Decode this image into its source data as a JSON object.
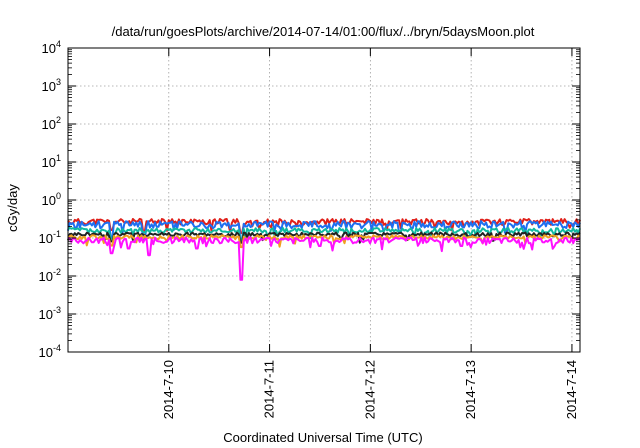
{
  "chart_data": {
    "type": "line",
    "title": "/data/run/goesPlots/archive/2014-07-14/01:00/flux/../bryn/5daysMoon.plot",
    "xlabel": "Coordinated Universal Time (UTC)",
    "ylabel": "cGy/day",
    "yscale": "log",
    "ylim": [
      0.0001,
      10000
    ],
    "xlim": [
      9.0,
      14.08
    ],
    "x_unit_note": "days of July 2014",
    "grid": true,
    "legend": "none",
    "y_ticks": [
      {
        "base": "10",
        "exp": "-4"
      },
      {
        "base": "10",
        "exp": "-3"
      },
      {
        "base": "10",
        "exp": "-2"
      },
      {
        "base": "10",
        "exp": "-1"
      },
      {
        "base": "10",
        "exp": "0"
      },
      {
        "base": "10",
        "exp": "1"
      },
      {
        "base": "10",
        "exp": "2"
      },
      {
        "base": "10",
        "exp": "3"
      },
      {
        "base": "10",
        "exp": "4"
      }
    ],
    "x_ticks": [
      {
        "value": 10,
        "label": "2014-7-10"
      },
      {
        "value": 11,
        "label": "2014-7-11"
      },
      {
        "value": 12,
        "label": "2014-7-12"
      },
      {
        "value": 13,
        "label": "2014-7-13"
      },
      {
        "value": 14,
        "label": "2014-7-14"
      }
    ],
    "series": [
      {
        "color": "#e0201a",
        "base": 0.27,
        "amp": 0.18,
        "dips": [
          [
            9.43,
            0.6
          ],
          [
            9.75,
            0.55
          ],
          [
            10.72,
            0.5
          ]
        ],
        "seed": 11
      },
      {
        "color": "#1e6ff0",
        "base": 0.23,
        "amp": 0.22,
        "dips": [
          [
            9.43,
            0.45
          ],
          [
            9.75,
            0.4
          ],
          [
            10.72,
            0.4
          ],
          [
            12.3,
            0.6
          ],
          [
            13.35,
            0.6
          ]
        ],
        "seed": 23
      },
      {
        "color": "#10b9a0",
        "base": 0.16,
        "amp": 0.15,
        "dips": [
          [
            9.43,
            0.6
          ],
          [
            10.72,
            0.55
          ]
        ],
        "seed": 37
      },
      {
        "color": "#222222",
        "base": 0.125,
        "amp": 0.12,
        "dips": [
          [
            9.43,
            0.65
          ],
          [
            10.72,
            0.6
          ]
        ],
        "seed": 41
      },
      {
        "color": "#f0a020",
        "base": 0.105,
        "amp": 0.12,
        "dips": [
          [
            9.43,
            0.6
          ],
          [
            10.72,
            0.55
          ]
        ],
        "seed": 53
      },
      {
        "color": "#ff10ff",
        "base": 0.088,
        "amp": 0.18,
        "dips": [
          [
            9.43,
            0.45
          ],
          [
            9.6,
            0.6
          ],
          [
            9.8,
            0.4
          ],
          [
            10.28,
            0.6
          ],
          [
            10.72,
            0.09
          ],
          [
            11.5,
            0.7
          ],
          [
            12.9,
            0.7
          ]
        ],
        "seed": 67
      }
    ]
  }
}
